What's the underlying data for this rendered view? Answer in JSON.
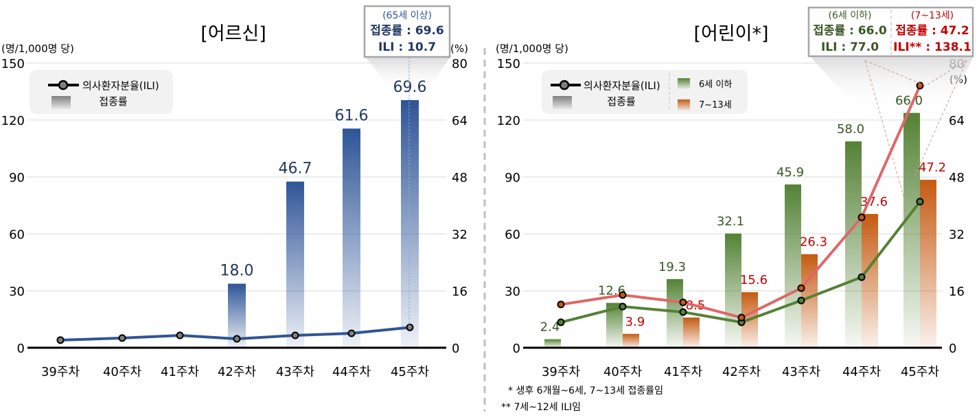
{
  "colors": {
    "elder_bar": "#2f5597",
    "elder_line": "#2f5597",
    "child_young": "#548235",
    "child_old": "#c55a11",
    "child_old_line": "#e06666",
    "child_old_text": "#c00000"
  },
  "chart_data": [
    {
      "type": "bar+line",
      "title": "[어르신]",
      "ylabel_left": "(명/1,000명 당)",
      "ylabel_right": "(%)",
      "ylim_left": [
        0,
        150
      ],
      "yticks_left": [
        "0",
        "30",
        "60",
        "90",
        "120",
        "150"
      ],
      "ylim_right": [
        0,
        80
      ],
      "yticks_right": [
        "0",
        "16",
        "32",
        "48",
        "64",
        "80"
      ],
      "categories": [
        "39주차",
        "40주차",
        "41주차",
        "42주차",
        "43주차",
        "44주차",
        "45주차"
      ],
      "legend": {
        "line": "의사환자분율(ILI)",
        "bar": "접종률"
      },
      "series": [
        {
          "name": "접종률",
          "type": "bar",
          "axis": "right",
          "values": [
            null,
            null,
            null,
            18.0,
            46.7,
            61.6,
            69.6
          ],
          "labels": [
            "",
            "",
            "",
            "18.0",
            "46.7",
            "61.6",
            "69.6"
          ]
        },
        {
          "name": "의사환자분율(ILI)",
          "type": "line",
          "axis": "left",
          "values": [
            4.0,
            5.1,
            6.5,
            4.7,
            6.5,
            7.6,
            10.7
          ]
        }
      ],
      "callout": {
        "title": "(65세 이상)",
        "line1": "접종률 : 69.6",
        "line2": "ILI : 10.7"
      },
      "grid": true
    },
    {
      "type": "bar+line",
      "title": "[어린이*]",
      "ylabel_left": "(명/1,000명 당)",
      "ylabel_right": "(%)",
      "ylim_left": [
        0,
        150
      ],
      "yticks_left": [
        "0",
        "30",
        "60",
        "90",
        "120",
        "150"
      ],
      "ylim_right": [
        0,
        80
      ],
      "yticks_right": [
        "0",
        "16",
        "32",
        "48",
        "64",
        "80"
      ],
      "categories": [
        "39주차",
        "40주차",
        "41주차",
        "42주차",
        "43주차",
        "44주차",
        "45주차"
      ],
      "legend": {
        "line": "의사환자분율(ILI)",
        "bar": "접종률",
        "young": "6세 이하",
        "old": "7~13세"
      },
      "series": [
        {
          "name": "6세 이하 접종률",
          "type": "bar",
          "axis": "right",
          "values": [
            2.4,
            12.6,
            19.3,
            32.1,
            45.9,
            58.0,
            66.0
          ],
          "labels": [
            "2.4",
            "12.6",
            "19.3",
            "32.1",
            "45.9",
            "58.0",
            "66.0"
          ]
        },
        {
          "name": "7~13세 접종률",
          "type": "bar",
          "axis": "right",
          "values": [
            null,
            3.9,
            8.5,
            15.6,
            26.3,
            37.6,
            47.2
          ],
          "labels": [
            "",
            "3.9",
            "8.5",
            "15.6",
            "26.3",
            "37.6",
            "47.2"
          ]
        },
        {
          "name": "6세 이하 ILI",
          "type": "line",
          "axis": "left",
          "values": [
            13.4,
            21.7,
            18.8,
            13.4,
            24.9,
            37.2,
            77.0
          ]
        },
        {
          "name": "7~12세 ILI",
          "type": "line",
          "axis": "left",
          "values": [
            22.8,
            27.8,
            23.9,
            15.9,
            31.4,
            68.7,
            138.1
          ]
        }
      ],
      "callout": {
        "young_title": "(6세 이하)",
        "young_line1": "접종률 : 66.0",
        "young_line2": "ILI : 77.0",
        "old_title": "(7~13세)",
        "old_line1": "접종률 : 47.2",
        "old_line2": "ILI** : 138.1"
      },
      "footnotes": [
        "* 생후 6개월~6세, 7~13세 접종률임",
        "** 7세~12세 ILI임"
      ],
      "grid": true
    }
  ]
}
